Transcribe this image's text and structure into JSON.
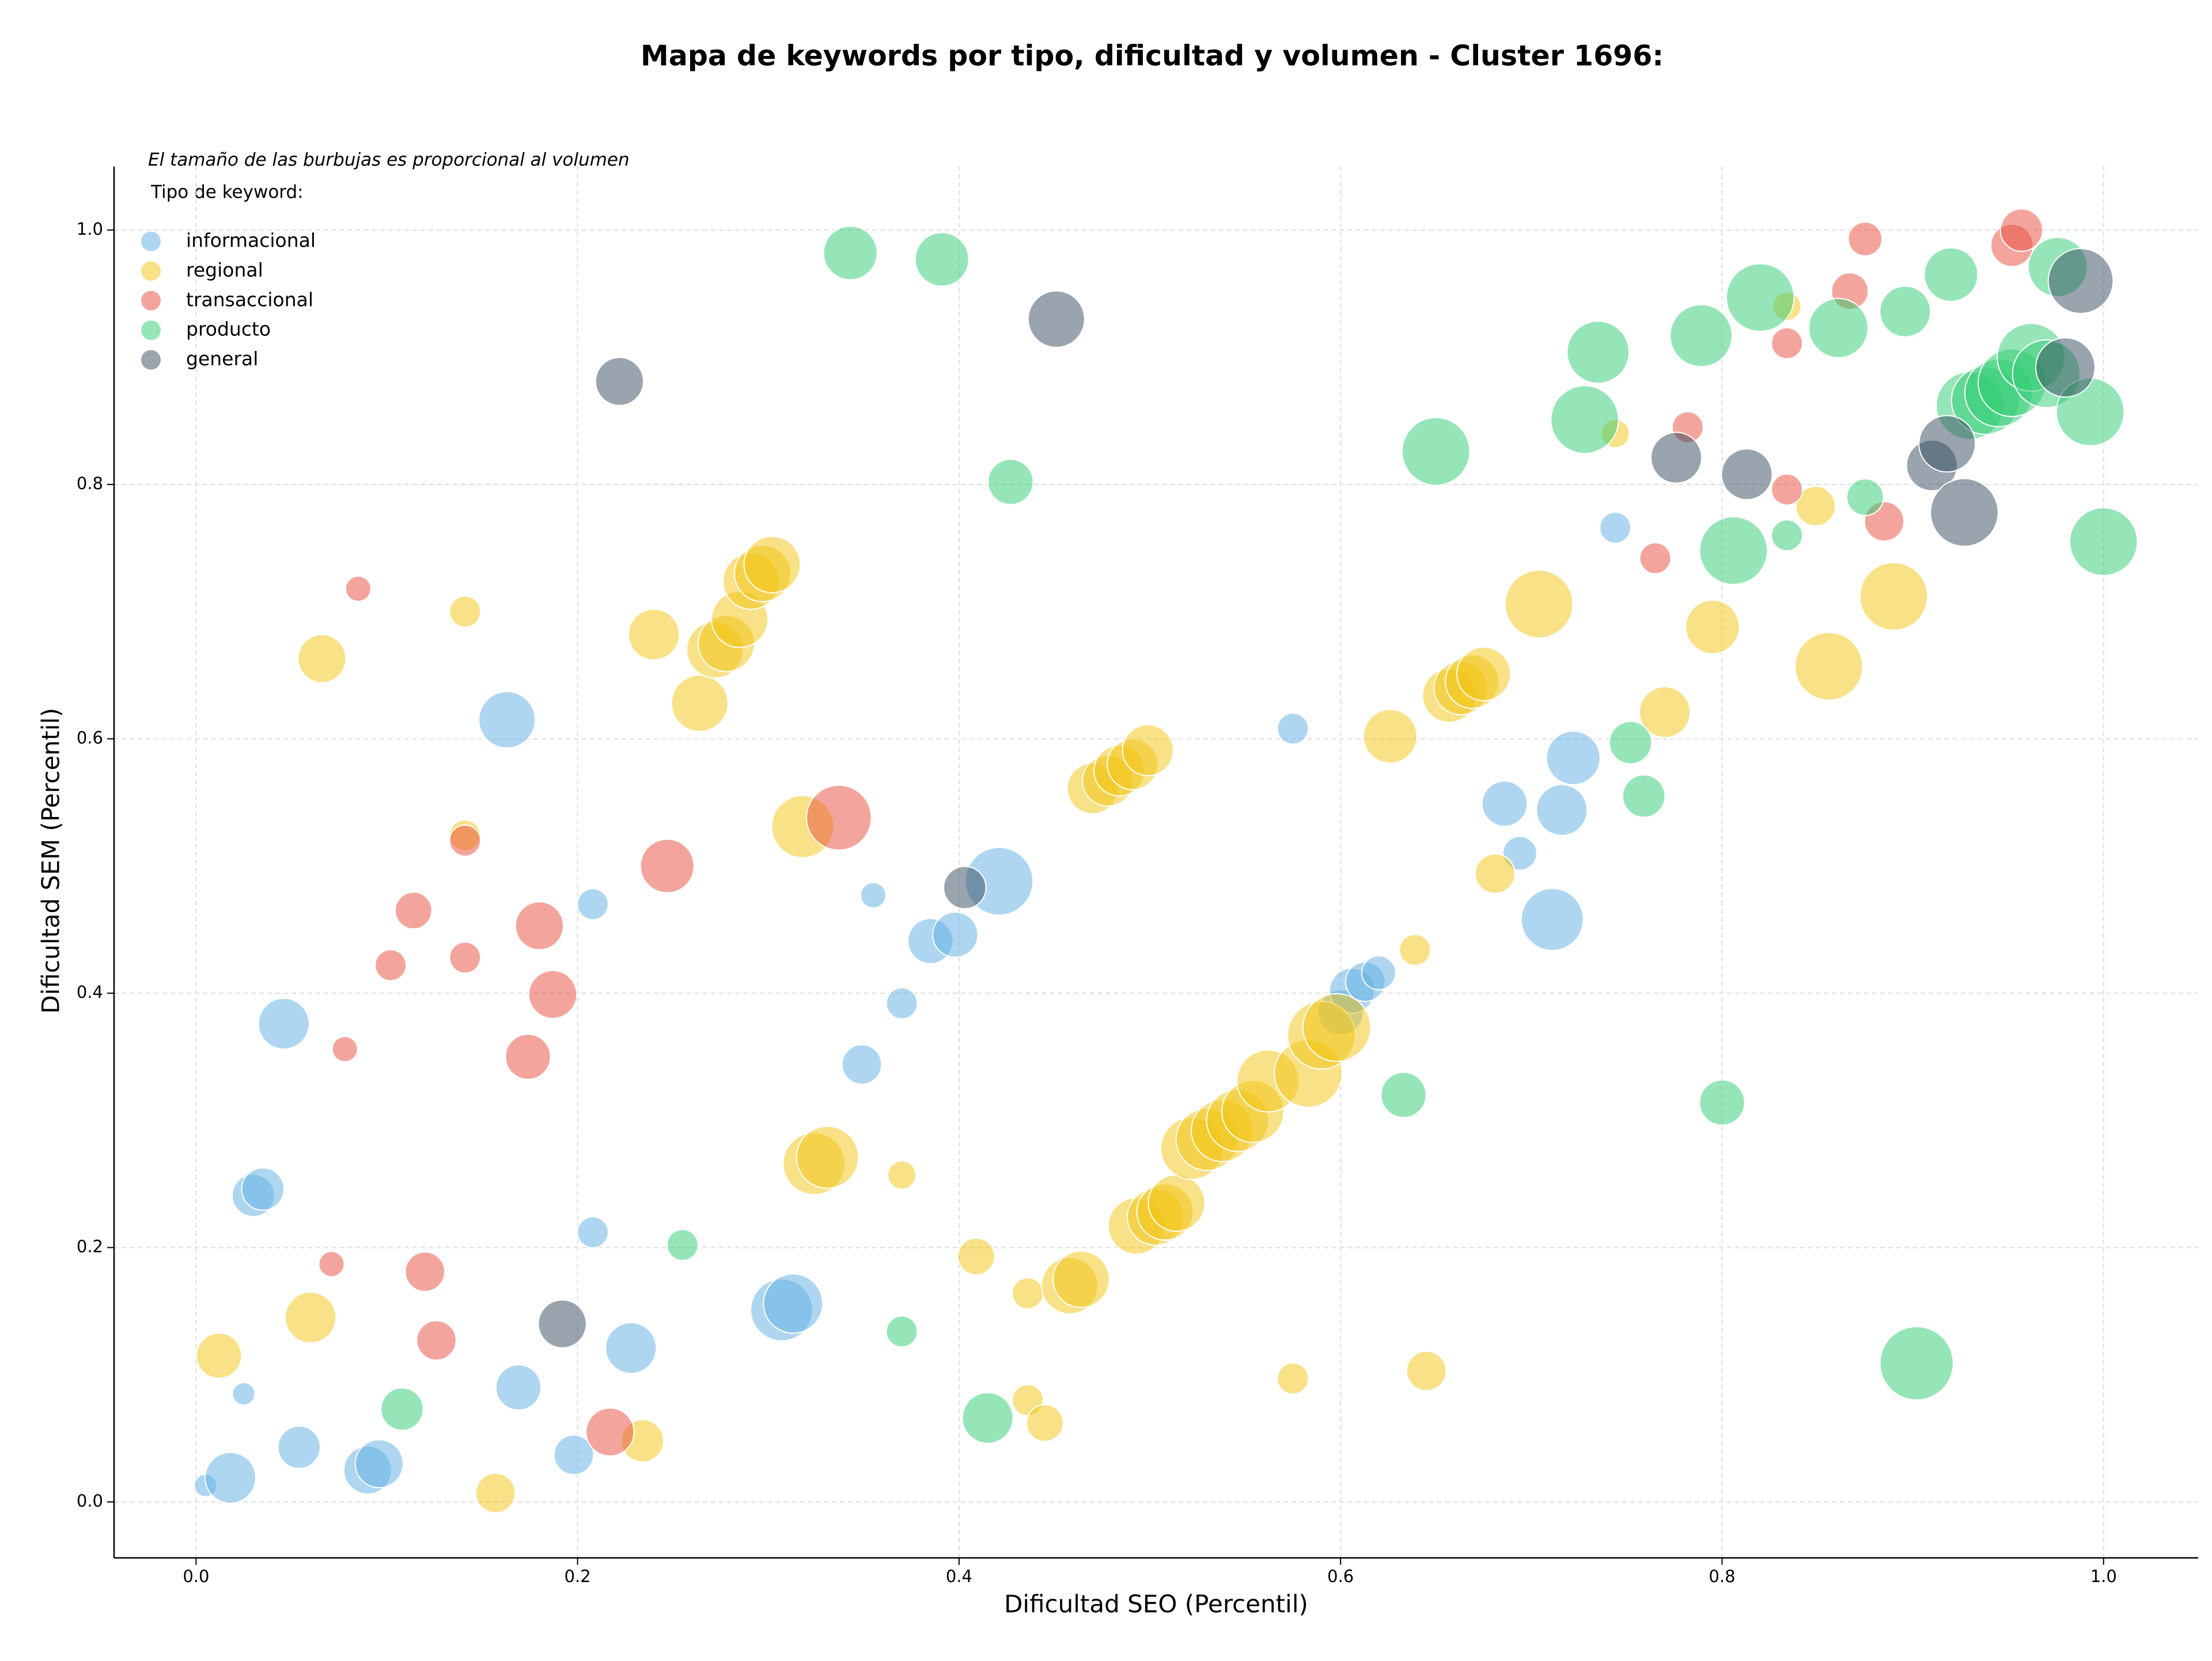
{
  "chart_data": {
    "type": "scatter",
    "title": "Mapa de keywords por tipo, dificultad y volumen - Cluster 1696:",
    "x_label": "Dificultad SEO (Percentil)",
    "y_label": "Dificultad SEM (Percentil)",
    "size_note": "El tamaño de las burbujas es proporcional al volumen",
    "legend_title": "Tipo de keyword:",
    "legend_position": "upper left",
    "grid": true,
    "xlim": [
      -0.043,
      1.0496
    ],
    "ylim": [
      -0.044,
      1.05
    ],
    "xticks": [
      {
        "value": 0,
        "label": "0.0"
      },
      0.2,
      0.4,
      0.6,
      0.8,
      {
        "value": 1,
        "label": "1.0"
      }
    ],
    "yticks": [
      {
        "value": 0,
        "label": "0.0"
      },
      0.2,
      0.4,
      0.6,
      0.8,
      {
        "value": 1,
        "label": "1.0"
      }
    ],
    "series": [
      {
        "name": "informacional",
        "color": "#5dade2",
        "x": [
          0.005,
          0.018,
          0.025,
          0.03,
          0.035,
          0.046,
          0.054,
          0.09,
          0.096,
          0.163,
          0.169,
          0.198,
          0.208,
          0.208,
          0.228,
          0.307,
          0.313,
          0.349,
          0.355,
          0.37,
          0.385,
          0.398,
          0.421,
          0.575,
          0.6,
          0.606,
          0.613,
          0.62,
          0.686,
          0.694,
          0.711,
          0.716,
          0.722,
          0.744
        ],
        "values": [
          0.013,
          0.019,
          0.085,
          0.241,
          0.246,
          0.376,
          0.043,
          0.025,
          0.03,
          0.615,
          0.09,
          0.037,
          0.212,
          0.47,
          0.121,
          0.151,
          0.156,
          0.344,
          0.477,
          0.392,
          0.441,
          0.446,
          0.488,
          0.608,
          0.385,
          0.402,
          0.409,
          0.416,
          0.549,
          0.51,
          0.458,
          0.544,
          0.585,
          0.766
        ],
        "sizes": [
          64,
          324,
          64,
          225,
          225,
          324,
          225,
          289,
          289,
          400,
          256,
          196,
          121,
          121,
          324,
          484,
          441,
          196,
          81,
          121,
          256,
          256,
          576,
          121,
          256,
          256,
          196,
          144,
          256,
          144,
          484,
          324,
          361,
          121
        ]
      },
      {
        "name": "regional",
        "color": "#f1c40f",
        "x": [
          0.012,
          0.06,
          0.066,
          0.141,
          0.141,
          0.157,
          0.234,
          0.24,
          0.264,
          0.272,
          0.278,
          0.285,
          0.291,
          0.297,
          0.302,
          0.318,
          0.324,
          0.331,
          0.37,
          0.409,
          0.436,
          0.436,
          0.445,
          0.458,
          0.464,
          0.47,
          0.478,
          0.484,
          0.491,
          0.499,
          0.493,
          0.503,
          0.508,
          0.514,
          0.522,
          0.53,
          0.538,
          0.546,
          0.554,
          0.562,
          0.583,
          0.59,
          0.598,
          0.575,
          0.626,
          0.639,
          0.645,
          0.657,
          0.663,
          0.669,
          0.675,
          0.681,
          0.704,
          0.744,
          0.77,
          0.795,
          0.834,
          0.849,
          0.856,
          0.89
        ],
        "values": [
          0.115,
          0.145,
          0.663,
          0.7,
          0.524,
          0.007,
          0.048,
          0.682,
          0.628,
          0.67,
          0.675,
          0.694,
          0.724,
          0.73,
          0.737,
          0.531,
          0.266,
          0.271,
          0.257,
          0.193,
          0.08,
          0.164,
          0.062,
          0.17,
          0.175,
          0.561,
          0.567,
          0.575,
          0.58,
          0.591,
          0.217,
          0.224,
          0.228,
          0.235,
          0.278,
          0.285,
          0.292,
          0.3,
          0.307,
          0.331,
          0.337,
          0.367,
          0.373,
          0.097,
          0.602,
          0.434,
          0.103,
          0.634,
          0.64,
          0.645,
          0.651,
          0.494,
          0.706,
          0.84,
          0.621,
          0.688,
          0.94,
          0.783,
          0.657,
          0.712
        ],
        "sizes": [
          256,
          324,
          289,
          121,
          121,
          196,
          225,
          324,
          400,
          400,
          400,
          400,
          400,
          400,
          400,
          484,
          484,
          484,
          100,
          169,
          121,
          121,
          169,
          400,
          400,
          324,
          324,
          324,
          324,
          324,
          400,
          400,
          400,
          400,
          484,
          484,
          484,
          484,
          484,
          484,
          576,
          576,
          576,
          121,
          361,
          121,
          196,
          361,
          361,
          361,
          361,
          196,
          576,
          100,
          324,
          361,
          100,
          196,
          576,
          576
        ]
      },
      {
        "name": "transaccional",
        "color": "#e74c3c",
        "x": [
          0.071,
          0.078,
          0.085,
          0.102,
          0.114,
          0.12,
          0.126,
          0.141,
          0.141,
          0.174,
          0.18,
          0.187,
          0.217,
          0.247,
          0.337,
          0.765,
          0.782,
          0.834,
          0.834,
          0.867,
          0.875,
          0.885,
          0.952,
          0.957
        ],
        "values": [
          0.187,
          0.356,
          0.718,
          0.422,
          0.465,
          0.181,
          0.127,
          0.428,
          0.52,
          0.35,
          0.453,
          0.399,
          0.055,
          0.5,
          0.538,
          0.742,
          0.845,
          0.911,
          0.796,
          0.952,
          0.993,
          0.771,
          0.988,
          1.0
        ],
        "sizes": [
          81,
          81,
          81,
          121,
          169,
          196,
          196,
          121,
          121,
          256,
          289,
          289,
          289,
          361,
          529,
          121,
          121,
          121,
          121,
          169,
          144,
          196,
          225,
          225
        ]
      },
      {
        "name": "producto",
        "color": "#2ecc71",
        "x": [
          0.108,
          0.255,
          0.343,
          0.391,
          0.37,
          0.415,
          0.427,
          0.633,
          0.65,
          0.728,
          0.735,
          0.752,
          0.759,
          0.789,
          0.8,
          0.806,
          0.82,
          0.834,
          0.861,
          0.875,
          0.896,
          0.902,
          0.92,
          0.93,
          0.938,
          0.945,
          0.952,
          0.962,
          0.97,
          0.976,
          0.993,
          1.0
        ],
        "values": [
          0.073,
          0.202,
          0.982,
          0.977,
          0.134,
          0.066,
          0.802,
          0.32,
          0.826,
          0.851,
          0.904,
          0.597,
          0.555,
          0.917,
          0.314,
          0.748,
          0.947,
          0.76,
          0.923,
          0.79,
          0.936,
          0.109,
          0.965,
          0.862,
          0.866,
          0.872,
          0.88,
          0.9,
          0.887,
          0.971,
          0.857,
          0.755
        ],
        "sizes": [
          225,
          121,
          361,
          361,
          121,
          324,
          256,
          256,
          576,
          576,
          484,
          225,
          225,
          484,
          256,
          576,
          576,
          121,
          441,
          169,
          324,
          676,
          361,
          576,
          576,
          576,
          576,
          576,
          576,
          441,
          576,
          576
        ]
      },
      {
        "name": "general",
        "color": "#34495e",
        "x": [
          0.192,
          0.222,
          0.403,
          0.451,
          0.776,
          0.813,
          0.91,
          0.918,
          0.927,
          0.98,
          0.988
        ],
        "values": [
          0.14,
          0.881,
          0.483,
          0.93,
          0.821,
          0.808,
          0.815,
          0.832,
          0.778,
          0.892,
          0.96
        ],
        "sizes": [
          289,
          289,
          225,
          400,
          324,
          324,
          324,
          400,
          576,
          441,
          529
        ]
      }
    ]
  }
}
